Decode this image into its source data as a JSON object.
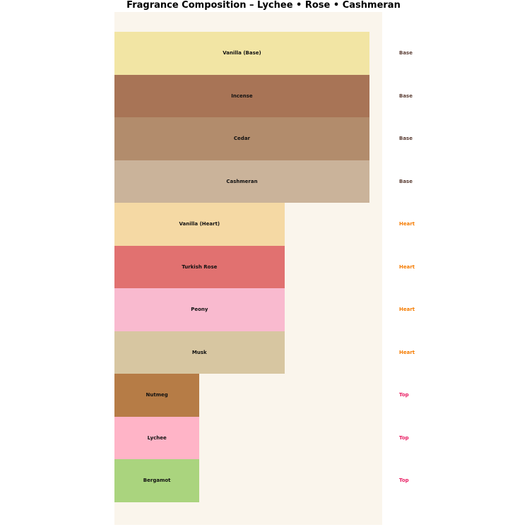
{
  "title": "Fragrance Composition – Lychee • Rose • Cashmeran",
  "colors": {
    "page_background": "#ffffff",
    "plot_background": "#faf5ec",
    "bar_label_text": "#111111",
    "tier_colors": {
      "Base": "#5d4037",
      "Heart": "#f57c00",
      "Top": "#e91e63"
    }
  },
  "chart_data": {
    "type": "bar",
    "orientation": "horizontal",
    "title": "Fragrance Composition – Lychee • Rose • Cashmeran",
    "categories": [
      "Vanilla (Base)",
      "Incense",
      "Cedar",
      "Cashmeran",
      "Vanilla (Heart)",
      "Turkish Rose",
      "Peony",
      "Musk",
      "Nutmeg",
      "Lychee",
      "Bergamot"
    ],
    "values": [
      3,
      3,
      3,
      3,
      2,
      2,
      2,
      2,
      1,
      1,
      1
    ],
    "tiers": [
      "Base",
      "Base",
      "Base",
      "Base",
      "Heart",
      "Heart",
      "Heart",
      "Heart",
      "Top",
      "Top",
      "Top"
    ],
    "bar_colors": [
      "#f2e5a4",
      "#a87456",
      "#b28c6c",
      "#cab39a",
      "#f5d9a4",
      "#e17170",
      "#f9bacf",
      "#d7c6a1",
      "#b67c46",
      "#ffb4c7",
      "#aad47e"
    ],
    "xlim": [
      0,
      3.15
    ],
    "grid": false,
    "legend": false,
    "axis_ticks_visible": false,
    "xlabel": "",
    "ylabel": ""
  }
}
